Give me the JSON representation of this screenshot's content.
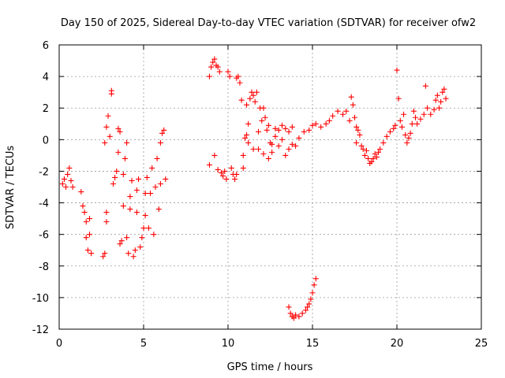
{
  "chart_data": {
    "type": "scatter",
    "title": "Day 150 of 2025, Sidereal Day-to-day VTEC variation (SDTVAR) for receiver ofw2",
    "xlabel": "GPS time / hours",
    "ylabel": "SDTVAR / TECUs",
    "xlim": [
      0,
      25
    ],
    "ylim": [
      -12,
      6
    ],
    "xticks": [
      0,
      5,
      10,
      15,
      20,
      25
    ],
    "yticks": [
      -12,
      -10,
      -8,
      -6,
      -4,
      -2,
      0,
      2,
      4,
      6
    ],
    "grid": true,
    "marker": "+",
    "series_color": "#ff0000",
    "series": [
      {
        "name": "ofw2",
        "points": [
          [
            0.2,
            -2.8
          ],
          [
            0.3,
            -2.5
          ],
          [
            0.4,
            -3.0
          ],
          [
            0.5,
            -2.2
          ],
          [
            0.6,
            -1.8
          ],
          [
            0.7,
            -2.6
          ],
          [
            0.8,
            -3.0
          ],
          [
            1.3,
            -3.3
          ],
          [
            1.4,
            -4.2
          ],
          [
            1.5,
            -4.6
          ],
          [
            1.6,
            -5.2
          ],
          [
            1.6,
            -6.2
          ],
          [
            1.7,
            -7.0
          ],
          [
            1.8,
            -6.0
          ],
          [
            1.8,
            -5.0
          ],
          [
            1.9,
            -7.2
          ],
          [
            2.6,
            -7.4
          ],
          [
            2.7,
            -7.2
          ],
          [
            2.8,
            -5.2
          ],
          [
            2.8,
            -4.6
          ],
          [
            2.7,
            -0.2
          ],
          [
            2.8,
            0.8
          ],
          [
            2.9,
            1.5
          ],
          [
            3.0,
            0.2
          ],
          [
            3.1,
            2.9
          ],
          [
            3.1,
            3.1
          ],
          [
            3.2,
            -2.8
          ],
          [
            3.3,
            -2.4
          ],
          [
            3.4,
            -2.0
          ],
          [
            3.5,
            -0.8
          ],
          [
            3.5,
            0.7
          ],
          [
            3.6,
            0.5
          ],
          [
            3.6,
            -6.6
          ],
          [
            3.7,
            -6.4
          ],
          [
            3.8,
            -4.2
          ],
          [
            3.8,
            -2.2
          ],
          [
            3.9,
            -1.2
          ],
          [
            4.0,
            -0.2
          ],
          [
            4.0,
            -6.2
          ],
          [
            4.1,
            -7.2
          ],
          [
            4.2,
            -4.4
          ],
          [
            4.2,
            -3.6
          ],
          [
            4.3,
            -2.6
          ],
          [
            4.4,
            -7.4
          ],
          [
            4.5,
            -7.0
          ],
          [
            4.6,
            -4.6
          ],
          [
            4.6,
            -3.2
          ],
          [
            4.7,
            -2.5
          ],
          [
            4.8,
            -6.8
          ],
          [
            4.9,
            -6.2
          ],
          [
            5.0,
            -5.6
          ],
          [
            5.1,
            -4.8
          ],
          [
            5.1,
            -3.4
          ],
          [
            5.2,
            -2.4
          ],
          [
            5.3,
            -5.6
          ],
          [
            5.4,
            -3.4
          ],
          [
            5.5,
            -1.8
          ],
          [
            5.6,
            -6.0
          ],
          [
            5.7,
            -3.0
          ],
          [
            5.8,
            -1.2
          ],
          [
            5.9,
            -4.4
          ],
          [
            6.0,
            -2.8
          ],
          [
            6.0,
            -0.2
          ],
          [
            6.1,
            0.4
          ],
          [
            6.2,
            0.6
          ],
          [
            6.3,
            -2.5
          ],
          [
            8.9,
            -1.6
          ],
          [
            8.9,
            4.0
          ],
          [
            9.0,
            4.6
          ],
          [
            9.1,
            4.9
          ],
          [
            9.2,
            5.1
          ],
          [
            9.2,
            -1.0
          ],
          [
            9.3,
            4.7
          ],
          [
            9.4,
            4.6
          ],
          [
            9.4,
            -1.9
          ],
          [
            9.5,
            4.3
          ],
          [
            9.6,
            -2.1
          ],
          [
            9.7,
            -2.3
          ],
          [
            9.8,
            -2.0
          ],
          [
            9.9,
            -2.5
          ],
          [
            10.0,
            4.3
          ],
          [
            10.1,
            4.0
          ],
          [
            10.2,
            -1.8
          ],
          [
            10.3,
            -2.2
          ],
          [
            10.4,
            -2.5
          ],
          [
            10.5,
            -2.2
          ],
          [
            10.5,
            3.9
          ],
          [
            10.6,
            4.0
          ],
          [
            10.7,
            3.6
          ],
          [
            10.8,
            2.5
          ],
          [
            10.9,
            -1.8
          ],
          [
            10.9,
            -1.0
          ],
          [
            11.0,
            0.1
          ],
          [
            11.1,
            0.3
          ],
          [
            11.1,
            2.2
          ],
          [
            11.2,
            1.0
          ],
          [
            11.3,
            2.6
          ],
          [
            11.4,
            3.0
          ],
          [
            11.5,
            2.8
          ],
          [
            11.6,
            2.4
          ],
          [
            11.7,
            3.0
          ],
          [
            11.8,
            0.5
          ],
          [
            11.9,
            2.0
          ],
          [
            12.0,
            1.2
          ],
          [
            12.1,
            2.0
          ],
          [
            12.2,
            1.4
          ],
          [
            11.2,
            -0.2
          ],
          [
            11.5,
            -0.6
          ],
          [
            11.8,
            -0.6
          ],
          [
            12.1,
            -0.9
          ],
          [
            12.4,
            -1.2
          ],
          [
            12.6,
            -0.8
          ],
          [
            12.8,
            0.2
          ],
          [
            13.0,
            -0.4
          ],
          [
            13.2,
            0.0
          ],
          [
            12.3,
            0.6
          ],
          [
            12.4,
            0.9
          ],
          [
            12.5,
            -0.2
          ],
          [
            12.6,
            -0.3
          ],
          [
            12.8,
            0.7
          ],
          [
            13.0,
            0.6
          ],
          [
            13.2,
            0.9
          ],
          [
            13.4,
            0.7
          ],
          [
            13.6,
            0.5
          ],
          [
            13.8,
            0.8
          ],
          [
            13.4,
            -1.0
          ],
          [
            13.6,
            -0.6
          ],
          [
            13.8,
            -0.3
          ],
          [
            14.0,
            -0.4
          ],
          [
            14.2,
            0.1
          ],
          [
            14.5,
            0.5
          ],
          [
            14.8,
            0.6
          ],
          [
            15.0,
            0.9
          ],
          [
            13.6,
            -10.6
          ],
          [
            13.7,
            -11.0
          ],
          [
            13.8,
            -11.2
          ],
          [
            13.9,
            -11.3
          ],
          [
            14.0,
            -11.1
          ],
          [
            14.2,
            -11.2
          ],
          [
            14.4,
            -11.0
          ],
          [
            14.6,
            -10.8
          ],
          [
            14.7,
            -10.6
          ],
          [
            14.8,
            -10.4
          ],
          [
            14.9,
            -10.1
          ],
          [
            15.0,
            -9.7
          ],
          [
            15.1,
            -9.2
          ],
          [
            15.2,
            -8.8
          ],
          [
            15.2,
            1.0
          ],
          [
            15.5,
            0.8
          ],
          [
            15.8,
            1.0
          ],
          [
            16.0,
            1.2
          ],
          [
            16.2,
            1.5
          ],
          [
            16.5,
            1.8
          ],
          [
            16.8,
            1.6
          ],
          [
            17.0,
            1.8
          ],
          [
            17.2,
            1.2
          ],
          [
            17.3,
            2.7
          ],
          [
            17.4,
            2.2
          ],
          [
            17.5,
            1.4
          ],
          [
            17.6,
            0.8
          ],
          [
            17.6,
            -0.2
          ],
          [
            17.7,
            0.6
          ],
          [
            17.8,
            0.3
          ],
          [
            17.9,
            -0.4
          ],
          [
            18.0,
            -0.6
          ],
          [
            18.1,
            -1.0
          ],
          [
            18.2,
            -0.7
          ],
          [
            18.3,
            -1.2
          ],
          [
            18.4,
            -1.5
          ],
          [
            18.5,
            -1.4
          ],
          [
            18.6,
            -1.2
          ],
          [
            18.7,
            -0.9
          ],
          [
            18.8,
            -1.1
          ],
          [
            18.9,
            -0.8
          ],
          [
            19.0,
            -0.6
          ],
          [
            19.2,
            -0.2
          ],
          [
            19.4,
            0.2
          ],
          [
            19.6,
            0.5
          ],
          [
            19.8,
            0.7
          ],
          [
            19.9,
            0.9
          ],
          [
            20.0,
            4.4
          ],
          [
            20.1,
            2.6
          ],
          [
            20.2,
            1.2
          ],
          [
            20.3,
            0.8
          ],
          [
            20.4,
            1.6
          ],
          [
            20.5,
            0.3
          ],
          [
            20.6,
            -0.2
          ],
          [
            20.7,
            0.1
          ],
          [
            20.8,
            0.4
          ],
          [
            20.9,
            1.0
          ],
          [
            21.0,
            1.8
          ],
          [
            21.1,
            1.4
          ],
          [
            21.2,
            1.0
          ],
          [
            21.4,
            1.3
          ],
          [
            21.6,
            1.6
          ],
          [
            21.7,
            3.4
          ],
          [
            21.8,
            2.0
          ],
          [
            22.0,
            1.6
          ],
          [
            22.2,
            1.9
          ],
          [
            22.3,
            2.5
          ],
          [
            22.4,
            2.8
          ],
          [
            22.5,
            2.0
          ],
          [
            22.6,
            2.4
          ],
          [
            22.7,
            3.0
          ],
          [
            22.8,
            3.2
          ],
          [
            22.9,
            2.6
          ]
        ]
      }
    ]
  }
}
